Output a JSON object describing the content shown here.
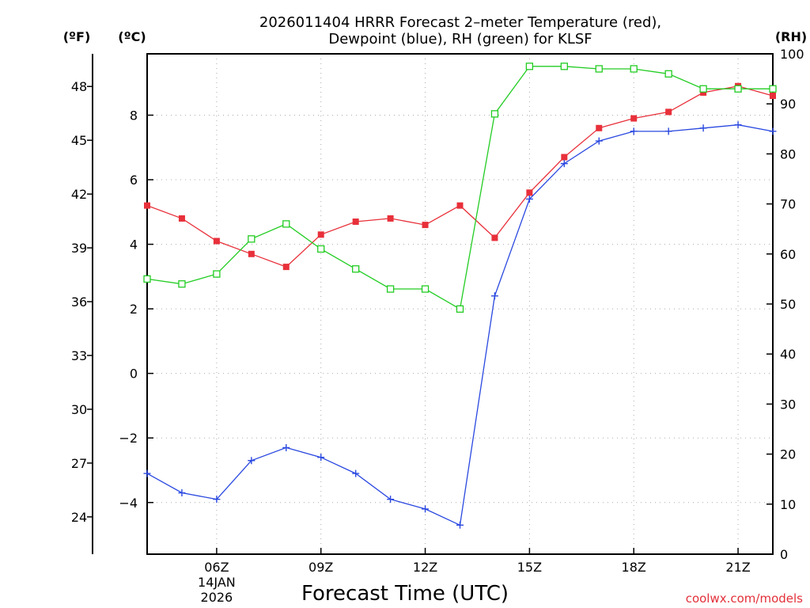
{
  "chart_data": {
    "type": "line",
    "title_lines": [
      "2026011404 HRRR Forecast 2–meter Temperature (red),",
      "Dewpoint (blue), RH (green) for KLSF"
    ],
    "xlabel": "Forecast Time (UTC)",
    "unit_labels": {
      "fahrenheit": "(ºF)",
      "celsius": "(ºC)",
      "rh": "(RH)"
    },
    "x_range": [
      4,
      22
    ],
    "x_ticks": [
      {
        "x": 6,
        "label": "06Z",
        "sub1": "14JAN",
        "sub2": "2026"
      },
      {
        "x": 9,
        "label": "09Z"
      },
      {
        "x": 12,
        "label": "12Z"
      },
      {
        "x": 15,
        "label": "15Z"
      },
      {
        "x": 18,
        "label": "18Z"
      },
      {
        "x": 21,
        "label": "21Z"
      }
    ],
    "y_celsius": {
      "range": [
        -5.6,
        9.9
      ],
      "ticks": [
        -4,
        -2,
        0,
        2,
        4,
        6,
        8
      ]
    },
    "y_fahrenheit": {
      "ticks": [
        24,
        27,
        30,
        33,
        36,
        39,
        42,
        45,
        48
      ]
    },
    "y_rh": {
      "range": [
        0,
        100
      ],
      "ticks": [
        0,
        10,
        20,
        30,
        40,
        50,
        60,
        70,
        80,
        90,
        100
      ]
    },
    "hours": [
      4,
      5,
      6,
      7,
      8,
      9,
      10,
      11,
      12,
      13,
      14,
      15,
      16,
      17,
      18,
      19,
      20,
      21,
      22
    ],
    "series": [
      {
        "name": "Temperature",
        "units": "C",
        "color": "#e8303a",
        "marker": "filled-square",
        "values": [
          5.2,
          4.8,
          4.1,
          3.7,
          3.3,
          4.3,
          4.7,
          4.8,
          4.6,
          5.2,
          4.2,
          5.6,
          6.7,
          7.6,
          7.9,
          8.1,
          8.7,
          8.9,
          8.6
        ]
      },
      {
        "name": "Dewpoint",
        "units": "C",
        "color": "#2a48e0",
        "marker": "plus",
        "values": [
          -3.1,
          -3.7,
          -3.9,
          -2.7,
          -2.3,
          -2.6,
          -3.1,
          -3.9,
          -4.2,
          -4.7,
          2.4,
          5.4,
          6.5,
          7.2,
          7.5,
          7.5,
          7.6,
          7.7,
          7.5
        ]
      },
      {
        "name": "RH",
        "units": "%",
        "color": "#22cc22",
        "marker": "open-square",
        "values": [
          55,
          54,
          56,
          63,
          66,
          61,
          57,
          53,
          53,
          49,
          88,
          97.5,
          97.5,
          97,
          97,
          96,
          93,
          93,
          93
        ]
      }
    ]
  },
  "credit": "coolwx.com/models"
}
